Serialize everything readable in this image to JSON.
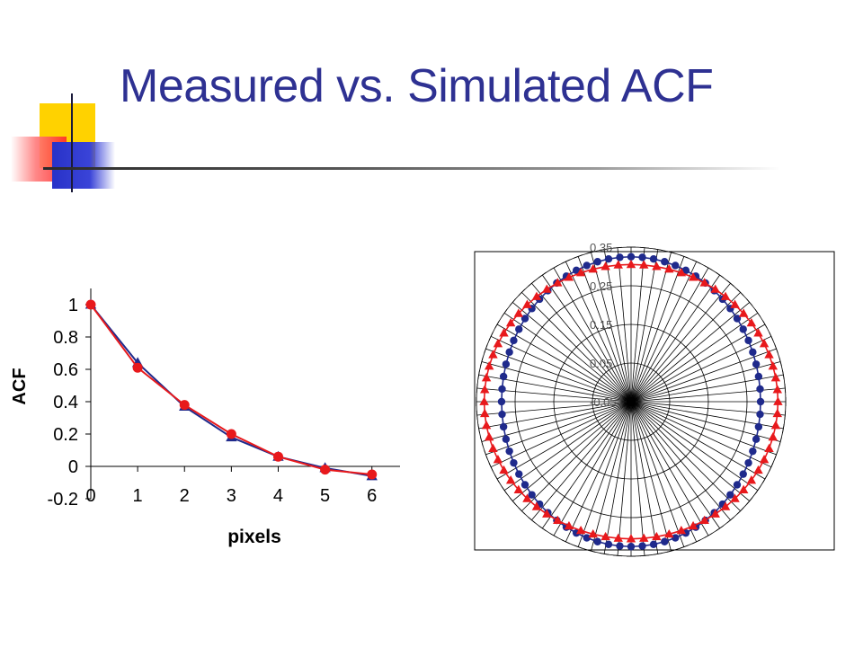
{
  "slide": {
    "title": "Measured vs. Simulated ACF"
  },
  "colors": {
    "title": "#2e3192",
    "measured": "#1f2a8c",
    "simulated": "#e8191c",
    "deco_yellow": "#ffd200",
    "deco_red": "#ff5a5a",
    "deco_blue": "#2832c8"
  },
  "chart_data": [
    {
      "type": "line",
      "xlabel": "pixels",
      "ylabel": "ACF",
      "x": [
        0,
        1,
        2,
        3,
        4,
        5,
        6
      ],
      "x_tick_labels": [
        "0",
        "1",
        "2",
        "3",
        "4",
        "5",
        "6"
      ],
      "y_tick_labels": [
        "1",
        "0.8",
        "0.6",
        "0.4",
        "0.2",
        "0",
        "-0.2"
      ],
      "xlim": [
        0,
        6.6
      ],
      "ylim": [
        -0.2,
        1.1
      ],
      "grid": false,
      "series": [
        {
          "marker": "triangle",
          "color": "#1f2a8c",
          "values": [
            1.0,
            0.64,
            0.37,
            0.18,
            0.06,
            -0.01,
            -0.06
          ]
        },
        {
          "marker": "circle",
          "color": "#e8191c",
          "values": [
            1.0,
            0.61,
            0.38,
            0.2,
            0.06,
            -0.02,
            -0.05
          ]
        }
      ]
    },
    {
      "type": "radar",
      "r_tick_labels": [
        "0.35",
        "0.25",
        "0.15",
        "0.05",
        "-0.05"
      ],
      "rlim": [
        -0.05,
        0.35
      ],
      "r_ticks": [
        0.35,
        0.25,
        0.15,
        0.05,
        -0.05
      ],
      "spokes": 72,
      "series": [
        {
          "marker": "circle",
          "color": "#1f2a8c",
          "x_radius": 0.285,
          "y_radius": 0.325
        },
        {
          "marker": "triangle",
          "color": "#e8191c",
          "x_radius": 0.33,
          "y_radius": 0.305
        }
      ]
    }
  ]
}
